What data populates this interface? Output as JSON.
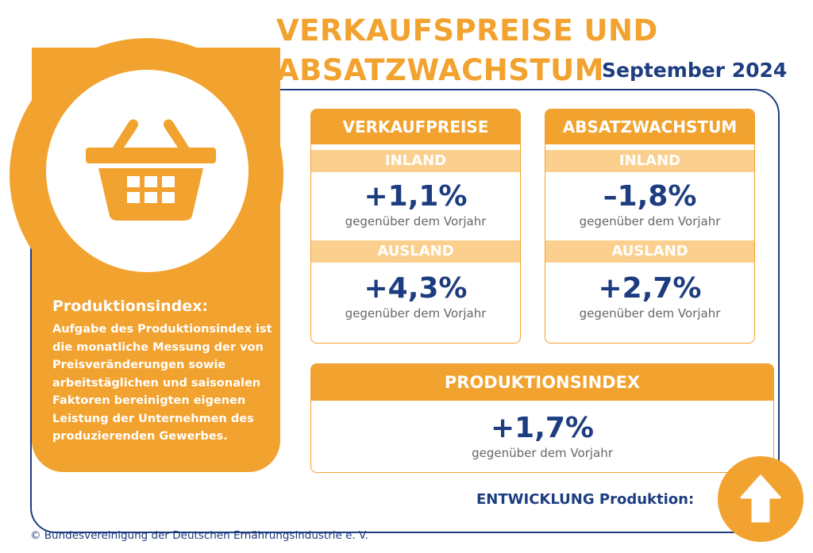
{
  "title": {
    "line1": "VERKAUFSPREISE UND",
    "line2": "ABSATZWACHSTUM",
    "date": "September 2024"
  },
  "sidebar": {
    "heading": "Produktionsindex:",
    "text": "Aufgabe des Produktionsindex ist die monatliche Messung der von Preisveränderungen sowie arbeitstäglichen und saisonalen Faktoren bereinigten eigenen Leistung der Unternehmen des produzierenden Gewerbes."
  },
  "cards": {
    "verkaufspreise": {
      "header": "VERKAUFPREISE",
      "inland": {
        "label": "INLAND",
        "value": "+1,1%",
        "caption": "gegenüber dem Vorjahr"
      },
      "ausland": {
        "label": "AUSLAND",
        "value": "+4,3%",
        "caption": "gegenüber dem Vorjahr"
      }
    },
    "absatzwachstum": {
      "header": "ABSATZWACHSTUM",
      "inland": {
        "label": "INLAND",
        "value": "–1,8%",
        "caption": "gegenüber dem Vorjahr"
      },
      "ausland": {
        "label": "AUSLAND",
        "value": "+2,7%",
        "caption": "gegenüber dem Vorjahr"
      }
    },
    "produktionsindex": {
      "header": "PRODUKTIONSINDEX",
      "value": "+1,7%",
      "caption": "gegenüber dem Vorjahr"
    }
  },
  "entwicklung": {
    "label": "ENTWICKLUNG Produktion:",
    "icon": "arrow-up-icon"
  },
  "footer": "© Bundesvereinigung der Deutschen Ernährungsindustrie e. V.",
  "colors": {
    "orange": "#f2a22e",
    "light_orange": "#fbd08e",
    "navy": "#1d3d80"
  }
}
